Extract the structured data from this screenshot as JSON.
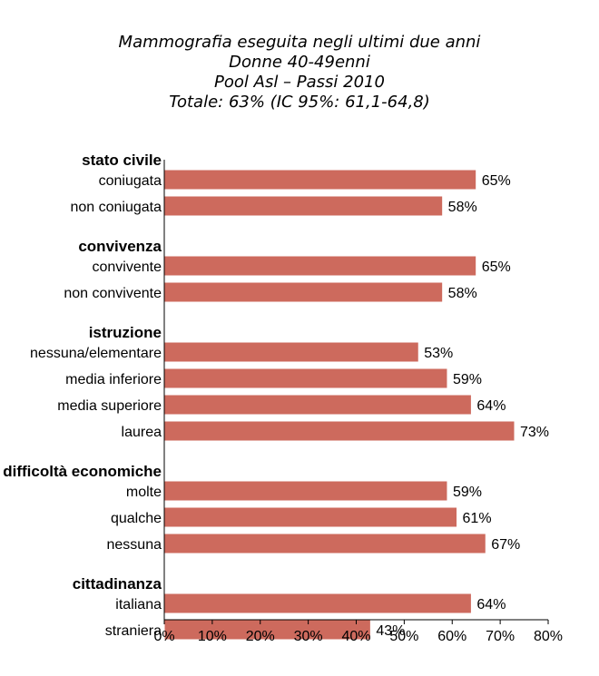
{
  "chart_data": {
    "type": "bar",
    "orientation": "horizontal",
    "title": [
      "Mammografia eseguita negli ultimi due anni",
      "Donne 40-49enni",
      "Pool Asl – Passi 2010",
      "Totale: 63% (IC 95%: 61,1-64,8)"
    ],
    "xlim": [
      0,
      80
    ],
    "xticks": [
      "0%",
      "10%",
      "20%",
      "30%",
      "40%",
      "50%",
      "60%",
      "70%",
      "80%"
    ],
    "xtick_values": [
      0,
      10,
      20,
      30,
      40,
      50,
      60,
      70,
      80
    ],
    "grid": false,
    "bar_color": "#cd6a5d",
    "groups": [
      {
        "label": "stato civile",
        "items": [
          {
            "label": "coniugata",
            "value": 65,
            "value_label": "65%"
          },
          {
            "label": "non coniugata",
            "value": 58,
            "value_label": "58%"
          }
        ]
      },
      {
        "label": "convivenza",
        "items": [
          {
            "label": "convivente",
            "value": 65,
            "value_label": "65%"
          },
          {
            "label": "non convivente",
            "value": 58,
            "value_label": "58%"
          }
        ]
      },
      {
        "label": "istruzione",
        "items": [
          {
            "label": "nessuna/elementare",
            "value": 53,
            "value_label": "53%"
          },
          {
            "label": "media inferiore",
            "value": 59,
            "value_label": "59%"
          },
          {
            "label": "media superiore",
            "value": 64,
            "value_label": "64%"
          },
          {
            "label": "laurea",
            "value": 73,
            "value_label": "73%"
          }
        ]
      },
      {
        "label": "difficoltà economiche",
        "items": [
          {
            "label": "molte",
            "value": 59,
            "value_label": "59%"
          },
          {
            "label": "qualche",
            "value": 61,
            "value_label": "61%"
          },
          {
            "label": "nessuna",
            "value": 67,
            "value_label": "67%"
          }
        ]
      },
      {
        "label": "cittadinanza",
        "items": [
          {
            "label": "italiana",
            "value": 64,
            "value_label": "64%"
          },
          {
            "label": "straniera",
            "value": 43,
            "value_label": "43%"
          }
        ]
      }
    ]
  }
}
